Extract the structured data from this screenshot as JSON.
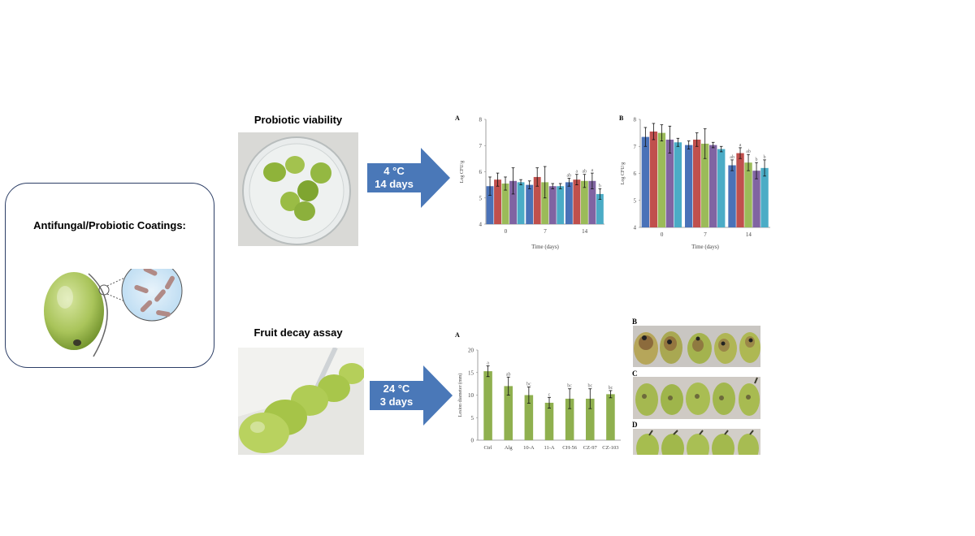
{
  "coating_box": {
    "title": "Antifungal/Probiotic Coatings:"
  },
  "viability": {
    "title": "Probiotic viability",
    "arrow_line1": "4 °C",
    "arrow_line2": "14 days"
  },
  "decay": {
    "title": "Fruit decay assay",
    "arrow_line1": "24 °C",
    "arrow_line2": "3 days"
  },
  "photo_panels": {
    "b": "B",
    "c": "C",
    "d": "D"
  },
  "colors": {
    "arrow": "#4a78b8",
    "box_border": "#2c3e66",
    "decay_bar": "#8fb04f"
  },
  "chart_data": [
    {
      "id": "viability-A",
      "panel": "A",
      "type": "bar",
      "ylabel": "Log CFU/g",
      "xlabel": "Time (days)",
      "categories": [
        "0",
        "7",
        "14"
      ],
      "ylim": [
        4,
        8
      ],
      "yticks": [
        "4",
        "5",
        "6",
        "7",
        "8"
      ],
      "series_colors": [
        "#4a72b8",
        "#c0504d",
        "#9bbb59",
        "#8064a2",
        "#4bacc6"
      ],
      "series": [
        {
          "values": [
            5.45,
            5.5,
            5.6
          ],
          "errors": [
            0.35,
            0.15,
            0.15
          ],
          "letters": [
            "",
            "",
            "ab"
          ]
        },
        {
          "values": [
            5.7,
            5.8,
            5.7
          ],
          "errors": [
            0.25,
            0.35,
            0.2
          ],
          "letters": [
            "",
            "",
            "a"
          ]
        },
        {
          "values": [
            5.55,
            5.6,
            5.65
          ],
          "errors": [
            0.25,
            0.6,
            0.25
          ],
          "letters": [
            "",
            "",
            "ab"
          ]
        },
        {
          "values": [
            5.65,
            5.45,
            5.65
          ],
          "errors": [
            0.5,
            0.1,
            0.3
          ],
          "letters": [
            "",
            "",
            "a"
          ]
        },
        {
          "values": [
            5.6,
            5.45,
            5.15
          ],
          "errors": [
            0.1,
            0.1,
            0.2
          ],
          "letters": [
            "",
            "",
            "b"
          ]
        }
      ]
    },
    {
      "id": "viability-B",
      "panel": "B",
      "type": "bar",
      "ylabel": "Log CFU/g",
      "xlabel": "Time (days)",
      "categories": [
        "0",
        "7",
        "14"
      ],
      "ylim": [
        4,
        8
      ],
      "yticks": [
        "4",
        "5",
        "6",
        "7",
        "8"
      ],
      "series_colors": [
        "#4a72b8",
        "#c0504d",
        "#9bbb59",
        "#8064a2",
        "#4bacc6"
      ],
      "series": [
        {
          "values": [
            7.35,
            7.05,
            6.3
          ],
          "errors": [
            0.35,
            0.15,
            0.2
          ],
          "letters": [
            "",
            "",
            "ab"
          ]
        },
        {
          "values": [
            7.55,
            7.25,
            6.75
          ],
          "errors": [
            0.3,
            0.25,
            0.2
          ],
          "letters": [
            "",
            "",
            "a"
          ]
        },
        {
          "values": [
            7.5,
            7.1,
            6.4
          ],
          "errors": [
            0.3,
            0.55,
            0.3
          ],
          "letters": [
            "",
            "",
            "ab"
          ]
        },
        {
          "values": [
            7.25,
            7.05,
            6.1
          ],
          "errors": [
            0.5,
            0.1,
            0.3
          ],
          "letters": [
            "",
            "",
            "b"
          ]
        },
        {
          "values": [
            7.15,
            6.9,
            6.2
          ],
          "errors": [
            0.15,
            0.1,
            0.3
          ],
          "letters": [
            "",
            "",
            "b"
          ]
        }
      ]
    },
    {
      "id": "decay-A",
      "panel": "A",
      "type": "bar",
      "ylabel": "Lesion diameter (mm)",
      "categories": [
        "Ctrl",
        "Alg",
        "10-A",
        "11-A",
        "CH-56",
        "CZ-97",
        "CZ-103"
      ],
      "values": [
        15.3,
        12,
        10,
        8.3,
        9.2,
        9.2,
        10.2
      ],
      "errors": [
        1.2,
        2,
        1.8,
        1.2,
        2.2,
        2.2,
        0.8
      ],
      "letters": [
        "a",
        "ab",
        "bc",
        "c",
        "bc",
        "bc",
        "bc"
      ],
      "ylim": [
        0,
        20
      ],
      "yticks": [
        "0",
        "5",
        "10",
        "15",
        "20"
      ]
    }
  ]
}
